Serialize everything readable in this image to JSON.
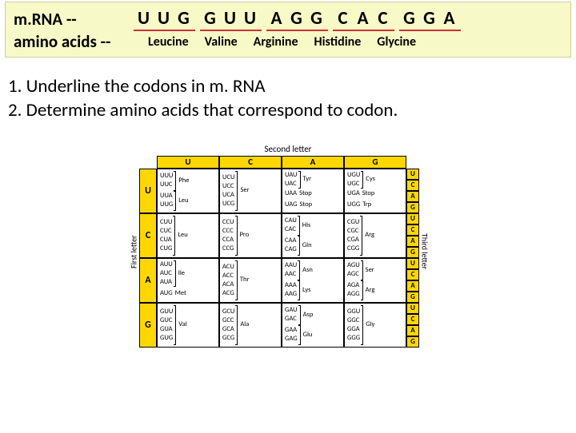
{
  "header": {
    "mrna_label": "m.RNA       --",
    "aa_label": "amino acids --",
    "codons": [
      [
        "U",
        "U",
        "G"
      ],
      [
        "G",
        "U",
        "U"
      ],
      [
        "A",
        "G",
        "G"
      ],
      [
        "C",
        "A",
        "C"
      ],
      [
        "G",
        "G",
        "A"
      ]
    ],
    "amino_acids": [
      "Leucine",
      "Valine",
      "Arginine",
      "Histidine",
      "Glycine"
    ],
    "underline_color": "#cc3333",
    "bg_color": "#f7f9c7"
  },
  "instructions": {
    "line1": "1. Underline the codons in m. RNA",
    "line2": "2. Determine amino acids that correspond to codon."
  },
  "codon_table": {
    "second_letter_label": "Second letter",
    "first_letter_label": "First letter",
    "third_letter_label": "Third letter",
    "header_bg": "#ffd700",
    "col_heads": [
      "U",
      "C",
      "A",
      "G"
    ],
    "row_heads": [
      "U",
      "C",
      "A",
      "G"
    ],
    "third_letters": [
      "U",
      "C",
      "A",
      "G"
    ],
    "cells": [
      [
        [
          {
            "codons": [
              "UUU",
              "UUC"
            ],
            "aa": "Phe"
          },
          {
            "codons": [
              "UUA",
              "UUG"
            ],
            "aa": "Leu"
          }
        ],
        [
          {
            "codons": [
              "UCU",
              "UCC",
              "UCA",
              "UCG"
            ],
            "aa": "Ser"
          }
        ],
        [
          {
            "codons": [
              "UAU",
              "UAC"
            ],
            "aa": "Tyr"
          },
          {
            "codons": [
              "UAA"
            ],
            "aa": "Stop"
          },
          {
            "codons": [
              "UAG"
            ],
            "aa": "Stop"
          }
        ],
        [
          {
            "codons": [
              "UGU",
              "UGC"
            ],
            "aa": "Cys"
          },
          {
            "codons": [
              "UGA"
            ],
            "aa": "Stop"
          },
          {
            "codons": [
              "UGG"
            ],
            "aa": "Trp"
          }
        ]
      ],
      [
        [
          {
            "codons": [
              "CUU",
              "CUC",
              "CUA",
              "CUG"
            ],
            "aa": "Leu"
          }
        ],
        [
          {
            "codons": [
              "CCU",
              "CCC",
              "CCA",
              "CCG"
            ],
            "aa": "Pro"
          }
        ],
        [
          {
            "codons": [
              "CAU",
              "CAC"
            ],
            "aa": "His"
          },
          {
            "codons": [
              "CAA",
              "CAG"
            ],
            "aa": "Gln"
          }
        ],
        [
          {
            "codons": [
              "CGU",
              "CGC",
              "CGA",
              "CGG"
            ],
            "aa": "Arg"
          }
        ]
      ],
      [
        [
          {
            "codons": [
              "AUU",
              "AUC",
              "AUA"
            ],
            "aa": "Ile"
          },
          {
            "codons": [
              "AUG"
            ],
            "aa": "Met"
          }
        ],
        [
          {
            "codons": [
              "ACU",
              "ACC",
              "ACA",
              "ACG"
            ],
            "aa": "Thr"
          }
        ],
        [
          {
            "codons": [
              "AAU",
              "AAC"
            ],
            "aa": "Asn"
          },
          {
            "codons": [
              "AAA",
              "AAG"
            ],
            "aa": "Lys"
          }
        ],
        [
          {
            "codons": [
              "AGU",
              "AGC"
            ],
            "aa": "Ser"
          },
          {
            "codons": [
              "AGA",
              "AGG"
            ],
            "aa": "Arg"
          }
        ]
      ],
      [
        [
          {
            "codons": [
              "GUU",
              "GUC",
              "GUA",
              "GUG"
            ],
            "aa": "Val"
          }
        ],
        [
          {
            "codons": [
              "GCU",
              "GCC",
              "GCA",
              "GCG"
            ],
            "aa": "Ala"
          }
        ],
        [
          {
            "codons": [
              "GAU",
              "GAC"
            ],
            "aa": "Asp"
          },
          {
            "codons": [
              "GAA",
              "GAG"
            ],
            "aa": "Glu"
          }
        ],
        [
          {
            "codons": [
              "GGU",
              "GGC",
              "GGA",
              "GGG"
            ],
            "aa": "Gly"
          }
        ]
      ]
    ]
  }
}
